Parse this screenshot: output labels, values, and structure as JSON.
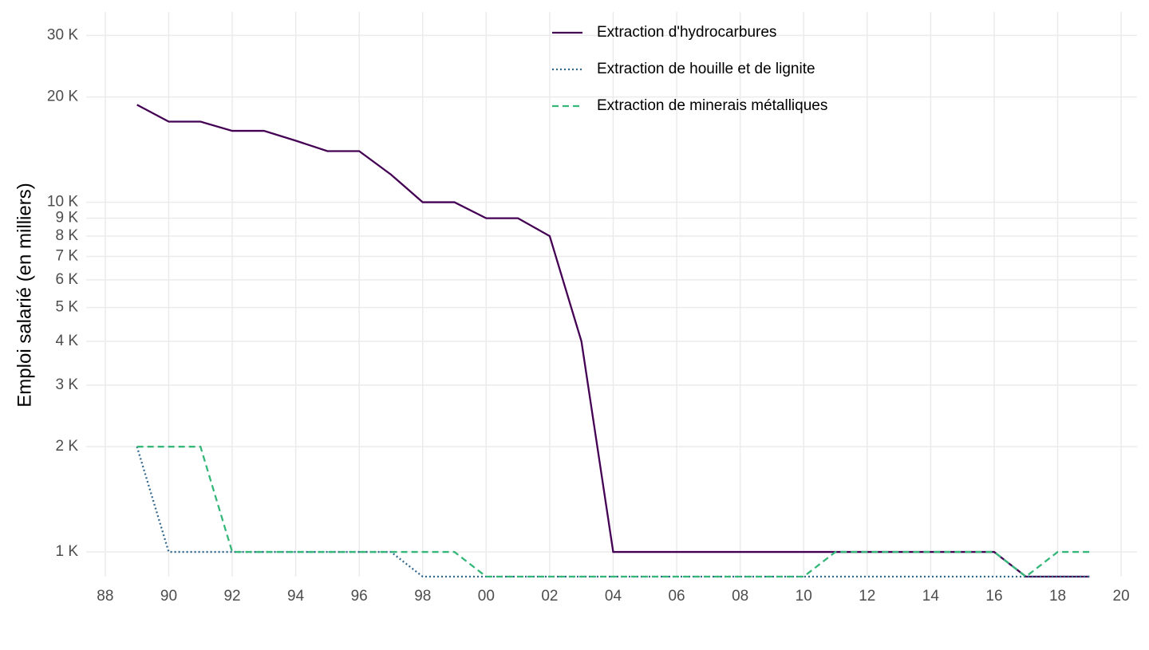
{
  "chart_data": {
    "type": "line",
    "y_label": "Emploi salarié (en milliers)",
    "log_y": true,
    "grid": true,
    "x": [
      1989,
      1990,
      1991,
      1992,
      1993,
      1994,
      1995,
      1996,
      1997,
      1998,
      1999,
      2000,
      2001,
      2002,
      2003,
      2004,
      2005,
      2006,
      2007,
      2008,
      2009,
      2010,
      2011,
      2012,
      2013,
      2014,
      2015,
      2016,
      2017,
      2018,
      2019
    ],
    "xlim": [
      1987.4,
      2020.5
    ],
    "xticks": [
      {
        "value": 1988,
        "label": "88"
      },
      {
        "value": 1990,
        "label": "90"
      },
      {
        "value": 1992,
        "label": "92"
      },
      {
        "value": 1994,
        "label": "94"
      },
      {
        "value": 1996,
        "label": "96"
      },
      {
        "value": 1998,
        "label": "98"
      },
      {
        "value": 2000,
        "label": "00"
      },
      {
        "value": 2002,
        "label": "02"
      },
      {
        "value": 2004,
        "label": "04"
      },
      {
        "value": 2006,
        "label": "06"
      },
      {
        "value": 2008,
        "label": "08"
      },
      {
        "value": 2010,
        "label": "10"
      },
      {
        "value": 2012,
        "label": "12"
      },
      {
        "value": 2014,
        "label": "14"
      },
      {
        "value": 2016,
        "label": "16"
      },
      {
        "value": 2018,
        "label": "18"
      },
      {
        "value": 2020,
        "label": "20"
      }
    ],
    "ylim": [
      850,
      35000
    ],
    "yticks": [
      {
        "value": 1000,
        "label": "1 K"
      },
      {
        "value": 2000,
        "label": "2 K"
      },
      {
        "value": 3000,
        "label": "3 K"
      },
      {
        "value": 4000,
        "label": "4 K"
      },
      {
        "value": 5000,
        "label": "5 K"
      },
      {
        "value": 6000,
        "label": "6 K"
      },
      {
        "value": 7000,
        "label": "7 K"
      },
      {
        "value": 8000,
        "label": "8 K"
      },
      {
        "value": 9000,
        "label": "9 K"
      },
      {
        "value": 10000,
        "label": "10 K"
      },
      {
        "value": 20000,
        "label": "20 K"
      },
      {
        "value": 30000,
        "label": "30 K"
      }
    ],
    "series": [
      {
        "name": "Extraction d'hydrocarbures",
        "color": "#440154",
        "dash": "none",
        "values": [
          19000,
          17000,
          17000,
          16000,
          16000,
          15000,
          14000,
          14000,
          12000,
          10000,
          10000,
          9000,
          9000,
          8000,
          4000,
          1000,
          1000,
          1000,
          1000,
          1000,
          1000,
          1000,
          1000,
          1000,
          1000,
          1000,
          1000,
          1000,
          850,
          850,
          850
        ]
      },
      {
        "name": "Extraction de houille et de lignite",
        "color": "#31688e",
        "dash": "2 3",
        "values": [
          2000,
          1000,
          1000,
          1000,
          1000,
          1000,
          1000,
          1000,
          1000,
          850,
          850,
          850,
          850,
          850,
          850,
          850,
          850,
          850,
          850,
          850,
          850,
          850,
          850,
          850,
          850,
          850,
          850,
          850,
          850,
          850,
          850
        ]
      },
      {
        "name": "Extraction de minerais métalliques",
        "color": "#35b779",
        "dash": "8 5",
        "values": [
          2000,
          2000,
          2000,
          1000,
          1000,
          1000,
          1000,
          1000,
          1000,
          1000,
          1000,
          850,
          850,
          850,
          850,
          850,
          850,
          850,
          850,
          850,
          850,
          850,
          1000,
          1000,
          1000,
          1000,
          1000,
          1000,
          850,
          1000,
          1000
        ]
      }
    ]
  }
}
